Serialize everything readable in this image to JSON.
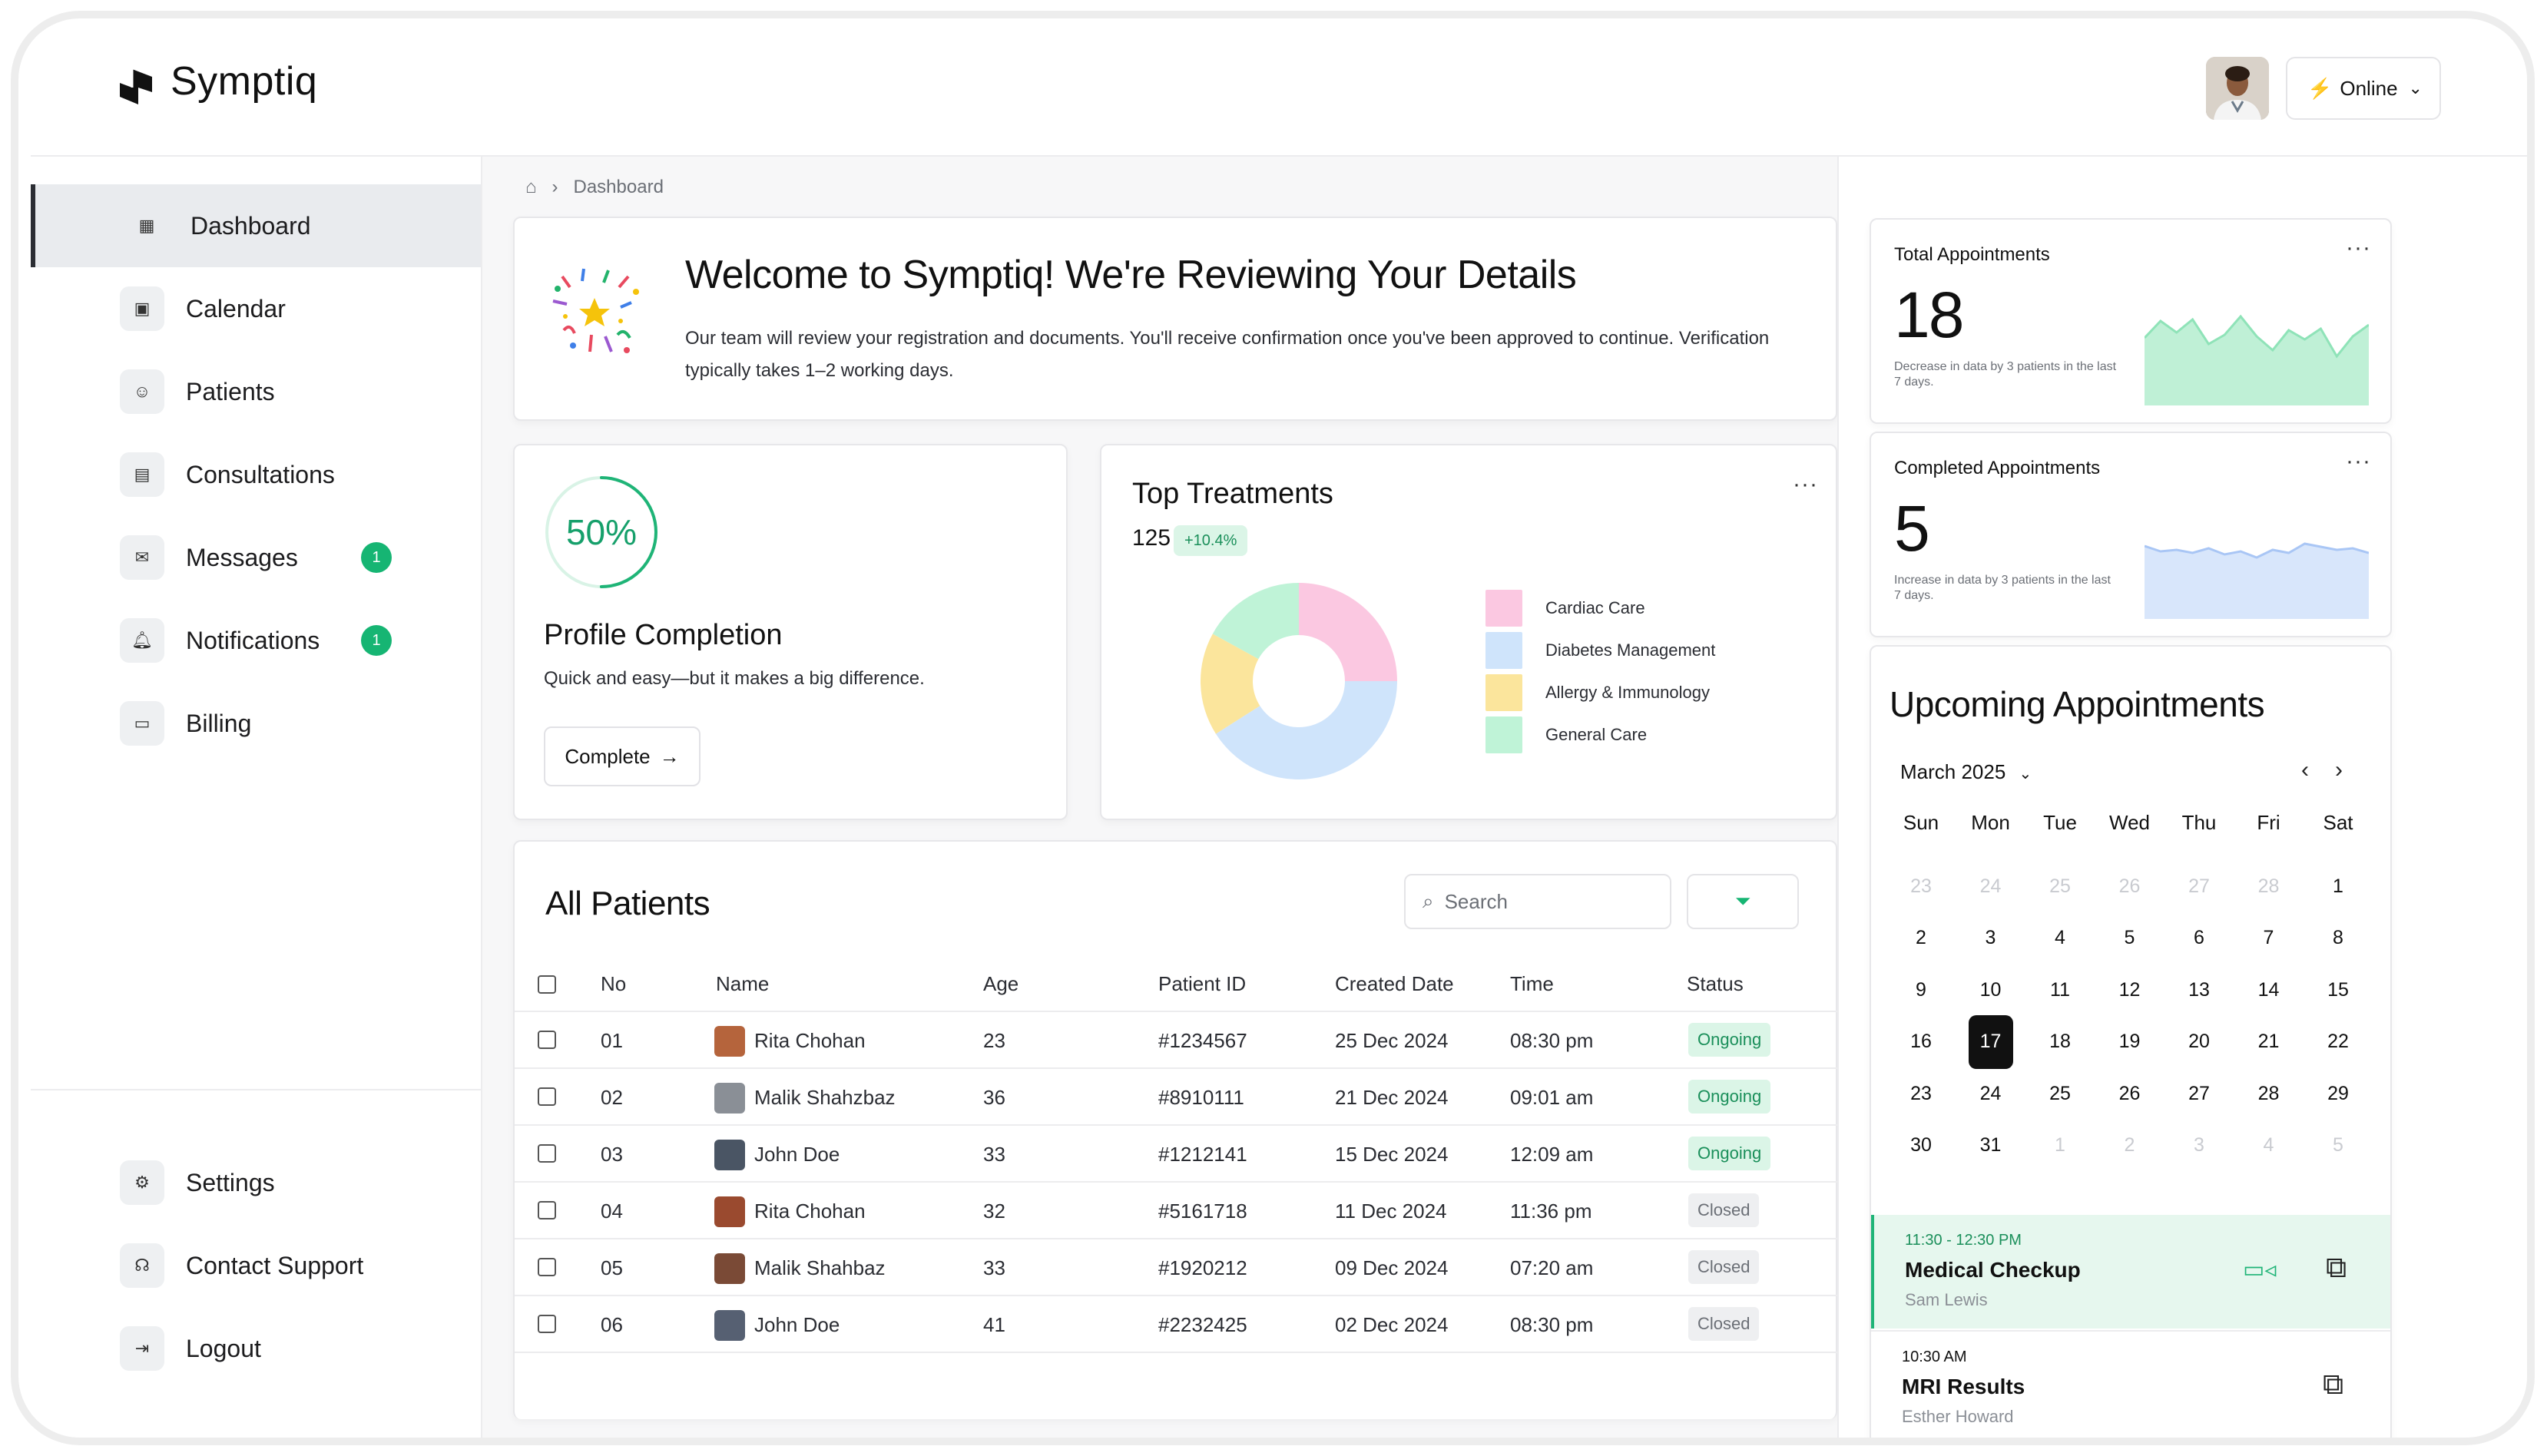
{
  "app": {
    "name": "Symptiq",
    "status": "Online"
  },
  "sidebar": {
    "items": [
      {
        "label": "Dashboard",
        "icon": "grid-icon",
        "active": true
      },
      {
        "label": "Calendar",
        "icon": "calendar-icon"
      },
      {
        "label": "Patients",
        "icon": "user-icon"
      },
      {
        "label": "Consultations",
        "icon": "clipboard-icon"
      },
      {
        "label": "Messages",
        "icon": "mail-icon",
        "badge": "1"
      },
      {
        "label": "Notifications",
        "icon": "bell-icon",
        "badge": "1"
      },
      {
        "label": "Billing",
        "icon": "card-icon"
      }
    ],
    "bottom": [
      {
        "label": "Settings",
        "icon": "gear-icon"
      },
      {
        "label": "Contact Support",
        "icon": "headset-icon"
      },
      {
        "label": "Logout",
        "icon": "logout-icon"
      }
    ]
  },
  "breadcrumb": {
    "current": "Dashboard"
  },
  "welcome": {
    "title": "Welcome to Symptiq! We're Reviewing Your Details",
    "body": "Our team will review your registration and documents. You'll receive confirmation once you've been approved to continue. Verification typically takes 1–2 working days."
  },
  "profile": {
    "percent": "50%",
    "fraction": 0.5,
    "title": "Profile Completion",
    "subtitle": "Quick and easy—but it makes a big difference.",
    "button": "Complete"
  },
  "top_treatments": {
    "title": "Top Treatments",
    "total": "125",
    "change": "+10.4%",
    "items": [
      {
        "label": "Cardiac Care",
        "color": "#fbc8e1",
        "share": 0.25
      },
      {
        "label": "Diabetes Management",
        "color": "#cfe4fb",
        "share": 0.41
      },
      {
        "label": "Allergy & Immunology",
        "color": "#fbe59c",
        "share": 0.17
      },
      {
        "label": "General Care",
        "color": "#bff3d7",
        "share": 0.17
      }
    ]
  },
  "patients": {
    "title": "All Patients",
    "search_placeholder": "Search",
    "columns": [
      "No",
      "Name",
      "Age",
      "Patient ID",
      "Created Date",
      "Time",
      "Status"
    ],
    "rows": [
      {
        "no": "01",
        "name": "Rita Chohan",
        "age": "23",
        "id": "#1234567",
        "date": "25 Dec 2024",
        "time": "08:30 pm",
        "status": "Ongoing"
      },
      {
        "no": "02",
        "name": "Malik Shahzbaz",
        "age": "36",
        "id": "#8910111",
        "date": "21 Dec 2024",
        "time": "09:01 am",
        "status": "Ongoing"
      },
      {
        "no": "03",
        "name": "John Doe",
        "age": "33",
        "id": "#1212141",
        "date": "15 Dec 2024",
        "time": "12:09 am",
        "status": "Ongoing"
      },
      {
        "no": "04",
        "name": "Rita Chohan",
        "age": "32",
        "id": "#5161718",
        "date": "11 Dec 2024",
        "time": "11:36 pm",
        "status": "Closed"
      },
      {
        "no": "05",
        "name": "Malik Shahbaz",
        "age": "33",
        "id": "#1920212",
        "date": "09 Dec 2024",
        "time": "07:20 am",
        "status": "Closed"
      },
      {
        "no": "06",
        "name": "John Doe",
        "age": "41",
        "id": "#2232425",
        "date": "02 Dec 2024",
        "time": "08:30 pm",
        "status": "Closed"
      }
    ]
  },
  "stats": [
    {
      "label": "Total Appointments",
      "value": "18",
      "note": "Decrease in data by 3 patients in the last 7 days.",
      "color": "#bff0d6",
      "stroke": "#8fe3b8",
      "points": [
        62,
        40,
        55,
        38,
        70,
        58,
        34,
        60,
        78,
        52,
        64,
        50,
        86,
        60,
        45
      ]
    },
    {
      "label": "Completed Appointments",
      "value": "5",
      "note": "Increase in data by 3 patients in the last 7 days.",
      "color": "#d8e6fb",
      "stroke": "#a9c6f5",
      "points": [
        55,
        62,
        60,
        64,
        58,
        66,
        62,
        70,
        60,
        64,
        52,
        56,
        60,
        58,
        64
      ]
    }
  ],
  "calendar": {
    "title": "Upcoming Appointments",
    "month": "March 2025",
    "weekdays": [
      "Sun",
      "Mon",
      "Tue",
      "Wed",
      "Thu",
      "Fri",
      "Sat"
    ],
    "weeks": [
      [
        "23",
        "24",
        "25",
        "26",
        "27",
        "28",
        "1"
      ],
      [
        "2",
        "3",
        "4",
        "5",
        "6",
        "7",
        "8"
      ],
      [
        "9",
        "10",
        "11",
        "12",
        "13",
        "14",
        "15"
      ],
      [
        "16",
        "17",
        "18",
        "19",
        "20",
        "21",
        "22"
      ],
      [
        "23",
        "24",
        "25",
        "26",
        "27",
        "28",
        "29"
      ],
      [
        "30",
        "31",
        "1",
        "2",
        "3",
        "4",
        "5"
      ]
    ],
    "today": "17"
  },
  "appointments": [
    {
      "time": "11:30 - 12:30 PM",
      "title": "Medical Checkup",
      "person": "Sam Lewis"
    },
    {
      "time": "10:30 AM",
      "title": "MRI Results",
      "person": "Esther Howard"
    }
  ]
}
